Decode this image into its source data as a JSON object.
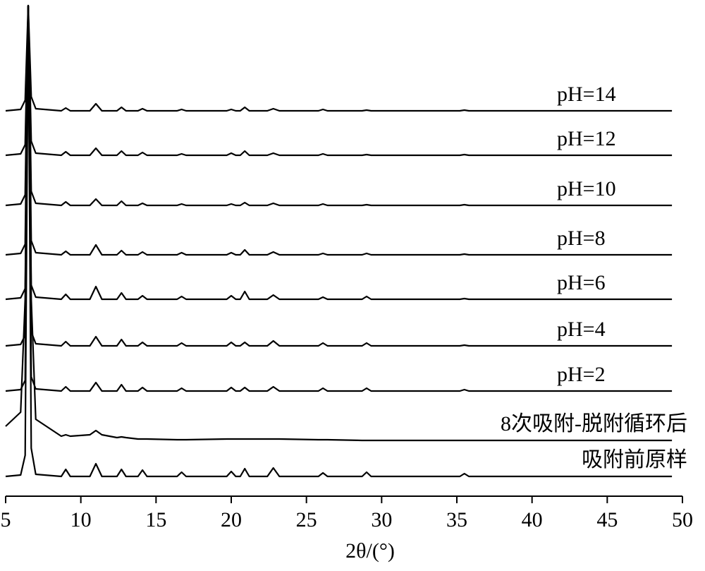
{
  "chart_data": {
    "type": "line",
    "x_label": "2θ/(°)",
    "x": [
      5,
      6.0,
      6.3,
      6.5,
      6.7,
      7.0,
      8.7,
      9.0,
      9.3,
      10.6,
      11.0,
      11.4,
      12.4,
      12.7,
      13.0,
      13.8,
      14.1,
      14.4,
      16.4,
      16.7,
      17.0,
      19.7,
      20.0,
      20.3,
      20.6,
      20.9,
      21.2,
      22.4,
      22.8,
      23.2,
      25.8,
      26.1,
      26.4,
      28.7,
      29.0,
      29.3,
      35.2,
      35.5,
      35.8,
      49.3
    ],
    "xlim": [
      5,
      50
    ],
    "xticks": [
      5,
      10,
      15,
      20,
      25,
      30,
      35,
      40,
      45,
      50
    ],
    "series": [
      {
        "name": "pH=14",
        "color": "#000000",
        "values": [
          0,
          2,
          15,
          149,
          20,
          3,
          0,
          4,
          0,
          0,
          10,
          0,
          0,
          5,
          0,
          0,
          3,
          0,
          0,
          2,
          0,
          0,
          2,
          0,
          0,
          5,
          0,
          0,
          3,
          0,
          0,
          2,
          0,
          0,
          1,
          0,
          0,
          1,
          0,
          0
        ]
      },
      {
        "name": "pH=12",
        "color": "#000000",
        "values": [
          0,
          2,
          15,
          212,
          20,
          3,
          0,
          5,
          0,
          0,
          10,
          0,
          0,
          6,
          0,
          0,
          4,
          0,
          0,
          2,
          0,
          0,
          3,
          0,
          0,
          6,
          0,
          0,
          3,
          0,
          0,
          2,
          0,
          0,
          1,
          0,
          0,
          1,
          0,
          0
        ]
      },
      {
        "name": "pH=10",
        "color": "#000000",
        "values": [
          0,
          2,
          15,
          283,
          20,
          3,
          0,
          5,
          0,
          0,
          9,
          0,
          0,
          6,
          0,
          0,
          3,
          0,
          0,
          2,
          0,
          0,
          2,
          0,
          0,
          4,
          0,
          0,
          3,
          0,
          0,
          2,
          0,
          0,
          1,
          0,
          0,
          1,
          0,
          0
        ]
      },
      {
        "name": "pH=8",
        "color": "#000000",
        "values": [
          0,
          2,
          15,
          353,
          20,
          3,
          0,
          5,
          0,
          0,
          14,
          0,
          0,
          6,
          0,
          0,
          4,
          0,
          0,
          3,
          0,
          0,
          3,
          0,
          0,
          7,
          0,
          0,
          4,
          0,
          0,
          2,
          0,
          0,
          2,
          0,
          0,
          1,
          0,
          0
        ]
      },
      {
        "name": "pH=6",
        "color": "#000000",
        "values": [
          0,
          2,
          15,
          416,
          20,
          3,
          0,
          7,
          0,
          0,
          18,
          0,
          0,
          9,
          0,
          0,
          5,
          0,
          0,
          4,
          0,
          0,
          5,
          0,
          0,
          11,
          0,
          0,
          6,
          0,
          0,
          3,
          0,
          0,
          4,
          0,
          0,
          1,
          0,
          0
        ]
      },
      {
        "name": "pH=4",
        "color": "#000000",
        "values": [
          0,
          2,
          15,
          482,
          20,
          3,
          0,
          6,
          0,
          0,
          13,
          0,
          0,
          9,
          0,
          0,
          5,
          0,
          0,
          4,
          0,
          0,
          5,
          0,
          0,
          5,
          0,
          0,
          7,
          0,
          0,
          4,
          0,
          0,
          4,
          0,
          0,
          1,
          0,
          0
        ]
      },
      {
        "name": "pH=2",
        "color": "#000000",
        "values": [
          0,
          2,
          15,
          546,
          20,
          3,
          0,
          6,
          0,
          0,
          12,
          0,
          0,
          9,
          0,
          0,
          5,
          0,
          0,
          4,
          0,
          0,
          5,
          0,
          0,
          5,
          0,
          0,
          6,
          0,
          0,
          4,
          0,
          0,
          4,
          0,
          0,
          2,
          0,
          0
        ]
      },
      {
        "name": "8次吸附-脱附循环后",
        "color": "#000000",
        "values": [
          20,
          40,
          200,
          615,
          200,
          30,
          6,
          8,
          6,
          8,
          14,
          8,
          4,
          5,
          4,
          2,
          2,
          2,
          1,
          1,
          1,
          2,
          2,
          2,
          2,
          2,
          2,
          2,
          2,
          2,
          1,
          1,
          1,
          0,
          0,
          0,
          0,
          0,
          0,
          0
        ]
      },
      {
        "name": "吸附前原样",
        "color": "#000000",
        "values": [
          0,
          2,
          30,
          665,
          40,
          3,
          0,
          10,
          0,
          0,
          18,
          0,
          0,
          10,
          0,
          0,
          9,
          0,
          0,
          6,
          0,
          0,
          7,
          0,
          0,
          11,
          0,
          0,
          12,
          0,
          0,
          5,
          0,
          0,
          6,
          0,
          0,
          4,
          0,
          0
        ]
      }
    ]
  }
}
